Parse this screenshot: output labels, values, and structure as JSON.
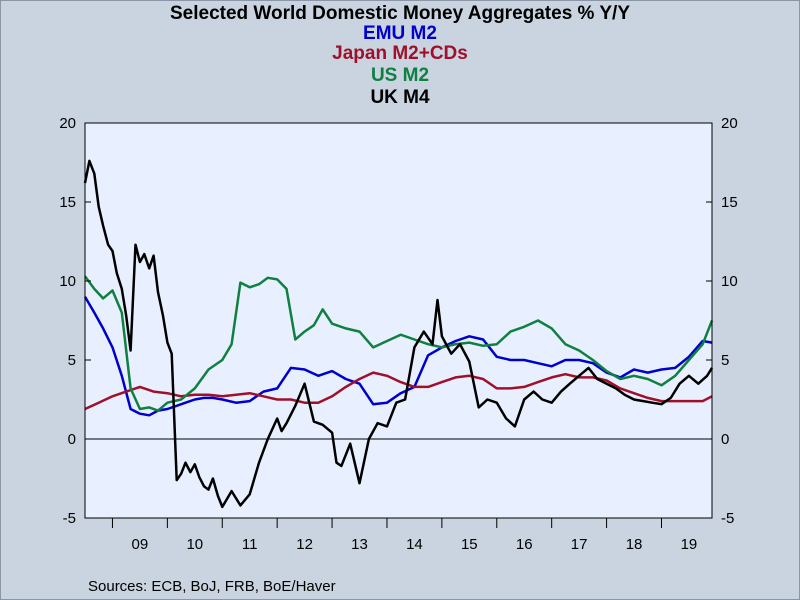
{
  "chart_data": {
    "type": "line",
    "title": "Selected World Domestic Money Aggregates % Y/Y",
    "legend_entries": [
      {
        "name": "EMU M2",
        "color": "#0000cc"
      },
      {
        "name": "Japan M2+CDs",
        "color": "#a0102a"
      },
      {
        "name": "US M2",
        "color": "#108040"
      },
      {
        "name": "UK M4",
        "color": "#000000"
      }
    ],
    "legend_placement": "top-center",
    "x_tick_labels": [
      "09",
      "10",
      "11",
      "12",
      "13",
      "14",
      "15",
      "16",
      "17",
      "18",
      "19"
    ],
    "y_tick_labels": [
      "20",
      "15",
      "10",
      "5",
      "0",
      "-5"
    ],
    "ylim": [
      -5,
      20
    ],
    "xlim": [
      2008.5,
      2019.92
    ],
    "grid": false,
    "zero_line": true,
    "plot_background": "#e8f0ff",
    "series": [
      {
        "name": "EMU M2",
        "color": "#0000cc",
        "x": [
          2008.5,
          2008.67,
          2008.83,
          2009.0,
          2009.17,
          2009.33,
          2009.5,
          2009.67,
          2009.83,
          2010.0,
          2010.17,
          2010.33,
          2010.5,
          2010.67,
          2010.83,
          2011.0,
          2011.25,
          2011.5,
          2011.75,
          2012.0,
          2012.25,
          2012.5,
          2012.75,
          2013.0,
          2013.25,
          2013.5,
          2013.75,
          2014.0,
          2014.25,
          2014.5,
          2014.75,
          2015.0,
          2015.25,
          2015.5,
          2015.75,
          2016.0,
          2016.25,
          2016.5,
          2016.75,
          2017.0,
          2017.25,
          2017.5,
          2017.75,
          2018.0,
          2018.25,
          2018.5,
          2018.75,
          2019.0,
          2019.25,
          2019.5,
          2019.75,
          2019.92
        ],
        "y": [
          9.0,
          8.0,
          7.0,
          5.8,
          4.0,
          1.9,
          1.6,
          1.5,
          1.8,
          1.9,
          2.1,
          2.3,
          2.5,
          2.6,
          2.6,
          2.5,
          2.3,
          2.4,
          3.0,
          3.2,
          4.5,
          4.4,
          4.0,
          4.3,
          3.8,
          3.5,
          2.2,
          2.3,
          2.9,
          3.3,
          5.3,
          5.8,
          6.2,
          6.5,
          6.3,
          5.2,
          5.0,
          5.0,
          4.8,
          4.6,
          5.0,
          5.0,
          4.8,
          4.2,
          3.9,
          4.4,
          4.2,
          4.4,
          4.5,
          5.2,
          6.2,
          6.1
        ]
      },
      {
        "name": "Japan M2+CDs",
        "color": "#a0102a",
        "x": [
          2008.5,
          2008.75,
          2009.0,
          2009.25,
          2009.5,
          2009.75,
          2010.0,
          2010.25,
          2010.5,
          2010.75,
          2011.0,
          2011.25,
          2011.5,
          2011.75,
          2012.0,
          2012.25,
          2012.5,
          2012.75,
          2013.0,
          2013.25,
          2013.5,
          2013.75,
          2014.0,
          2014.25,
          2014.5,
          2014.75,
          2015.0,
          2015.25,
          2015.5,
          2015.75,
          2016.0,
          2016.25,
          2016.5,
          2016.75,
          2017.0,
          2017.25,
          2017.5,
          2017.75,
          2018.0,
          2018.25,
          2018.5,
          2018.75,
          2019.0,
          2019.25,
          2019.5,
          2019.75,
          2019.92
        ],
        "y": [
          1.9,
          2.3,
          2.7,
          3.0,
          3.3,
          3.0,
          2.9,
          2.7,
          2.8,
          2.8,
          2.7,
          2.8,
          2.9,
          2.7,
          2.5,
          2.5,
          2.3,
          2.3,
          2.7,
          3.3,
          3.8,
          4.2,
          4.0,
          3.6,
          3.3,
          3.3,
          3.6,
          3.9,
          4.0,
          3.8,
          3.2,
          3.2,
          3.3,
          3.6,
          3.9,
          4.1,
          3.9,
          3.9,
          3.7,
          3.2,
          2.9,
          2.6,
          2.4,
          2.4,
          2.4,
          2.4,
          2.7
        ]
      },
      {
        "name": "US M2",
        "color": "#108040",
        "x": [
          2008.5,
          2008.67,
          2008.83,
          2009.0,
          2009.17,
          2009.33,
          2009.5,
          2009.67,
          2009.83,
          2010.0,
          2010.25,
          2010.5,
          2010.75,
          2011.0,
          2011.17,
          2011.33,
          2011.5,
          2011.67,
          2011.83,
          2012.0,
          2012.17,
          2012.33,
          2012.5,
          2012.67,
          2012.83,
          2013.0,
          2013.25,
          2013.5,
          2013.75,
          2014.0,
          2014.25,
          2014.5,
          2014.75,
          2015.0,
          2015.25,
          2015.5,
          2015.75,
          2016.0,
          2016.25,
          2016.5,
          2016.75,
          2017.0,
          2017.25,
          2017.5,
          2017.75,
          2018.0,
          2018.25,
          2018.5,
          2018.75,
          2019.0,
          2019.25,
          2019.5,
          2019.75,
          2019.92
        ],
        "y": [
          10.3,
          9.5,
          8.9,
          9.4,
          8.0,
          3.2,
          1.9,
          2.0,
          1.8,
          2.3,
          2.5,
          3.2,
          4.4,
          5.0,
          6.0,
          9.9,
          9.6,
          9.8,
          10.2,
          10.1,
          9.5,
          6.3,
          6.8,
          7.2,
          8.2,
          7.3,
          7.0,
          6.8,
          5.8,
          6.2,
          6.6,
          6.3,
          6.0,
          5.8,
          6.0,
          6.1,
          5.9,
          6.0,
          6.8,
          7.1,
          7.5,
          7.0,
          6.0,
          5.6,
          5.0,
          4.3,
          3.8,
          4.0,
          3.8,
          3.4,
          4.0,
          5.0,
          6.0,
          7.5
        ]
      },
      {
        "name": "UK M4",
        "color": "#000000",
        "x": [
          2008.5,
          2008.58,
          2008.67,
          2008.75,
          2008.83,
          2008.92,
          2009.0,
          2009.08,
          2009.17,
          2009.25,
          2009.33,
          2009.42,
          2009.5,
          2009.58,
          2009.67,
          2009.75,
          2009.83,
          2009.92,
          2010.0,
          2010.08,
          2010.17,
          2010.25,
          2010.33,
          2010.42,
          2010.5,
          2010.58,
          2010.67,
          2010.75,
          2010.83,
          2010.92,
          2011.0,
          2011.17,
          2011.33,
          2011.5,
          2011.67,
          2011.83,
          2012.0,
          2012.08,
          2012.17,
          2012.33,
          2012.5,
          2012.67,
          2012.83,
          2013.0,
          2013.08,
          2013.17,
          2013.33,
          2013.5,
          2013.67,
          2013.83,
          2014.0,
          2014.17,
          2014.33,
          2014.5,
          2014.67,
          2014.83,
          2014.92,
          2015.0,
          2015.17,
          2015.33,
          2015.5,
          2015.67,
          2015.83,
          2016.0,
          2016.17,
          2016.33,
          2016.5,
          2016.67,
          2016.83,
          2017.0,
          2017.17,
          2017.33,
          2017.5,
          2017.67,
          2017.83,
          2018.0,
          2018.17,
          2018.33,
          2018.5,
          2018.67,
          2018.83,
          2019.0,
          2019.17,
          2019.33,
          2019.5,
          2019.67,
          2019.83,
          2019.92
        ],
        "y": [
          16.2,
          17.6,
          16.8,
          14.7,
          13.5,
          12.3,
          11.9,
          10.5,
          9.5,
          7.8,
          5.6,
          12.3,
          11.2,
          11.7,
          10.8,
          11.6,
          9.3,
          7.8,
          6.1,
          5.4,
          -2.6,
          -2.2,
          -1.5,
          -2.1,
          -1.6,
          -2.4,
          -3.0,
          -3.2,
          -2.5,
          -3.6,
          -4.3,
          -3.3,
          -4.2,
          -3.5,
          -1.5,
          0.0,
          1.3,
          0.5,
          1.0,
          2.1,
          3.5,
          1.1,
          0.9,
          0.4,
          -1.5,
          -1.7,
          -0.3,
          -2.8,
          0.0,
          1.0,
          0.8,
          2.3,
          2.5,
          5.8,
          6.8,
          6.0,
          8.8,
          6.5,
          5.4,
          6.0,
          4.9,
          2.0,
          2.5,
          2.3,
          1.3,
          0.8,
          2.5,
          3.0,
          2.5,
          2.3,
          3.0,
          3.5,
          4.0,
          4.5,
          3.8,
          3.5,
          3.2,
          2.8,
          2.5,
          2.4,
          2.3,
          2.2,
          2.6,
          3.5,
          4.0,
          3.5,
          4.0,
          4.5
        ]
      }
    ]
  },
  "sources_note": "Sources:  ECB, BoJ, FRB, BoE/Haver"
}
